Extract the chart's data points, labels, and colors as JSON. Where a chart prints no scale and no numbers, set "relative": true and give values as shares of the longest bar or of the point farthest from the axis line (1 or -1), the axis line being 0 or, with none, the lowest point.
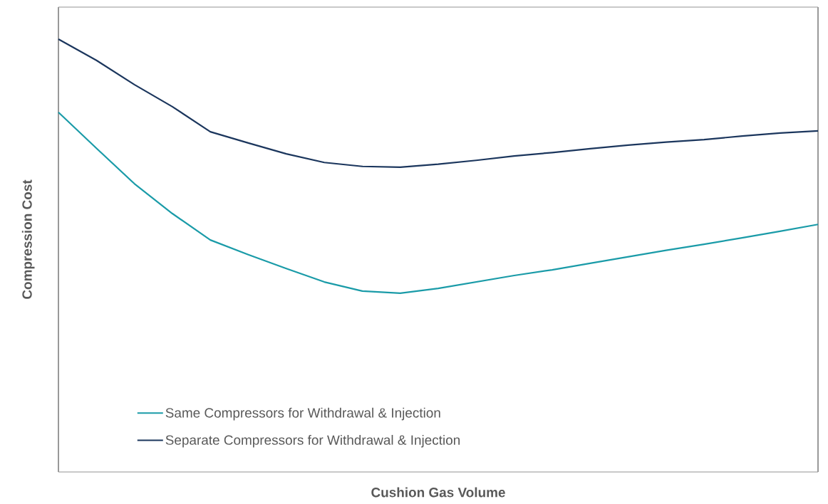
{
  "chart_data": {
    "type": "line",
    "relative": true,
    "xlabel": "Cushion Gas Volume",
    "ylabel": "Compression Cost",
    "categories": [
      null,
      null,
      null,
      null,
      null,
      null,
      null,
      null,
      null,
      null,
      null,
      null,
      null,
      null,
      null,
      null,
      null,
      null,
      null,
      null,
      null
    ],
    "series": [
      {
        "name": "Same Compressors for Withdrawal & Injection",
        "color": "#1a9ba8",
        "values": [
          0.831,
          0.748,
          0.666,
          0.597,
          0.536,
          0.502,
          0.47,
          0.439,
          0.418,
          0.413,
          0.424,
          0.439,
          0.454,
          0.467,
          0.482,
          0.497,
          0.512,
          0.526,
          0.541,
          0.556,
          0.572
        ]
      },
      {
        "name": "Separate Compressors for Withdrawal & Injection",
        "color": "#1b365d",
        "values": [
          1.0,
          0.951,
          0.895,
          0.844,
          0.786,
          0.76,
          0.735,
          0.715,
          0.706,
          0.704,
          0.711,
          0.72,
          0.73,
          0.738,
          0.747,
          0.755,
          0.762,
          0.768,
          0.776,
          0.783,
          0.788
        ]
      }
    ],
    "legend": "bottom left",
    "marker": "none",
    "line_style": "solid"
  }
}
